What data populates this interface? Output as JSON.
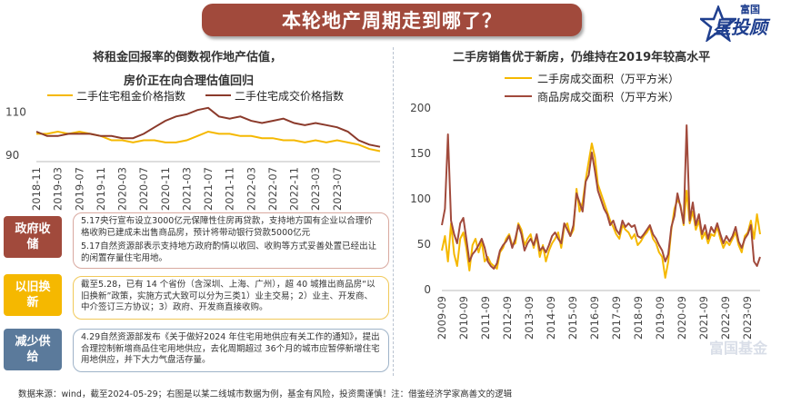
{
  "header": {
    "title": "本轮地产周期走到哪了？",
    "logo_small": "富国",
    "logo_big": "星投顾"
  },
  "left_chart": {
    "title_line1": "将租金回报率的倒数视作地产估值，",
    "title_line2": "房价正在向合理估值回归",
    "legend": [
      "二手住宅租金价格指数",
      "二手住宅成交价格指数"
    ],
    "colors": {
      "rent": "#f5b800",
      "trade": "#8b3a2b"
    }
  },
  "right_chart": {
    "title": "二手房销售优于新房，仍维持在2019年较高水平",
    "legend": [
      "二手房成交面积（万平方米）",
      "商品房成交面积（万平方米）"
    ],
    "colors": {
      "second_hand": "#f5b800",
      "new_home": "#a14a3c"
    }
  },
  "chart_data": [
    {
      "type": "line",
      "title": "",
      "ylim": [
        88,
        114
      ],
      "yticks": [
        90,
        110
      ],
      "x": [
        "2018-11",
        "2019-01",
        "2019-03",
        "2019-05",
        "2019-07",
        "2019-09",
        "2019-11",
        "2020-01",
        "2020-03",
        "2020-05",
        "2020-07",
        "2020-09",
        "2020-11",
        "2021-01",
        "2021-03",
        "2021-05",
        "2021-07",
        "2021-09",
        "2021-11",
        "2022-01",
        "2022-03",
        "2022-05",
        "2022-07",
        "2022-09",
        "2022-11",
        "2023-01",
        "2023-03",
        "2023-05",
        "2023-07",
        "2023-09",
        "2023-11",
        "2024-01",
        "2024-03"
      ],
      "xtick_labels": [
        "2018-11",
        "2019-03",
        "2019-07",
        "2019-11",
        "2020-03",
        "2020-07",
        "2020-11",
        "2021-03",
        "2021-07",
        "2021-11",
        "2022-03",
        "2022-07",
        "2022-11",
        "2023-03",
        "2023-07"
      ],
      "series": [
        {
          "name": "二手住宅租金价格指数",
          "values": [
            100,
            100,
            101,
            100,
            101,
            100,
            99,
            97,
            97,
            96,
            97,
            97,
            96,
            96,
            97,
            99,
            101,
            100,
            100,
            99,
            99,
            98,
            98,
            97,
            97,
            96,
            97,
            96,
            97,
            96,
            95,
            93,
            92
          ]
        },
        {
          "name": "二手住宅成交价格指数",
          "values": [
            101,
            99,
            99,
            100,
            100,
            100,
            99,
            99,
            98,
            98,
            100,
            103,
            106,
            108,
            109,
            111,
            112,
            108,
            107,
            108,
            106,
            105,
            106,
            107,
            105,
            104,
            105,
            104,
            103,
            101,
            97,
            95,
            94
          ]
        }
      ]
    },
    {
      "type": "line",
      "title": "",
      "ylim": [
        0,
        200
      ],
      "yticks": [
        0,
        50,
        100,
        150,
        200
      ],
      "x_start": "2009-09",
      "x_end": "2024-04",
      "xtick_labels": [
        "2009-09",
        "2010-09",
        "2011-09",
        "2012-09",
        "2013-09",
        "2014-09",
        "2015-09",
        "2016-09",
        "2017-09",
        "2018-09",
        "2019-09",
        "2020-09",
        "2021-09",
        "2022-09",
        "2023-09"
      ],
      "series": [
        {
          "name": "二手房成交面积（万平方米）",
          "values": [
            42,
            58,
            30,
            72,
            38,
            25,
            55,
            62,
            45,
            20,
            48,
            55,
            40,
            52,
            30,
            35,
            28,
            25,
            22,
            40,
            45,
            55,
            60,
            48,
            50,
            72,
            65,
            48,
            55,
            60,
            45,
            58,
            35,
            48,
            30,
            42,
            50,
            55,
            62,
            45,
            68,
            72,
            58,
            65,
            110,
            85,
            95,
            120,
            140,
            160,
            145,
            115,
            105,
            95,
            85,
            75,
            68,
            60,
            55,
            70,
            65,
            62,
            55,
            60,
            48,
            52,
            58,
            62,
            68,
            55,
            50,
            40,
            35,
            12,
            30,
            65,
            88,
            98,
            92,
            70,
            108,
            72,
            85,
            65,
            75,
            55,
            62,
            50,
            60,
            58,
            68,
            55,
            45,
            52,
            48,
            55,
            62,
            48,
            40,
            58,
            62,
            75,
            55,
            82,
            60
          ]
        },
        {
          "name": "商品房成交面积（万平方米）",
          "values": [
            70,
            88,
            170,
            75,
            60,
            50,
            72,
            78,
            55,
            30,
            38,
            42,
            48,
            55,
            45,
            30,
            25,
            22,
            28,
            42,
            48,
            52,
            58,
            45,
            55,
            70,
            60,
            42,
            50,
            55,
            48,
            60,
            42,
            46,
            40,
            48,
            58,
            62,
            55,
            50,
            72,
            65,
            58,
            70,
            105,
            95,
            85,
            118,
            125,
            150,
            130,
            108,
            98,
            88,
            82,
            70,
            75,
            65,
            60,
            75,
            68,
            72,
            68,
            70,
            58,
            56,
            60,
            65,
            70,
            60,
            55,
            48,
            42,
            30,
            38,
            68,
            80,
            105,
            90,
            72,
            180,
            75,
            95,
            70,
            82,
            60,
            70,
            55,
            68,
            62,
            72,
            60,
            50,
            58,
            52,
            58,
            68,
            52,
            45,
            55,
            60,
            70,
            30,
            25,
            35
          ]
        }
      ]
    }
  ],
  "policies": [
    {
      "tag_line1": "政府收",
      "tag_line2": "储",
      "items": [
        "5.17央行宣布设立3000亿元保障性住房再贷款，支持地方国有企业以合理价格收购已建成未出售商品房，预计将带动银行贷款5000亿元",
        "5.17自然资源部表示支持地方政府酌情以收回、收购等方式妥善处置已经出让的闲置存量住宅用地。"
      ]
    },
    {
      "tag_line1": "以旧换",
      "tag_line2": "新",
      "items": [
        "截至5.28，已有 14 个省份（含深圳、上海、广州），超 40 城推出商品房“以旧换新”政策，实施方式大致可以分为三类1）业主交易；2）业主、开发商、中介签订三方协议；3）政府、开发商直接收购。"
      ]
    },
    {
      "tag_line1": "减少供",
      "tag_line2": "给",
      "items": [
        "4.29自然资源部发布《关于做好2024 年住宅用地供应有关工作的通知》，提出合理控制新增商品住宅用地供应，去化周期超过 36个月的城市应暂停新增住宅用地供应，并下大力气盘活存量。"
      ]
    }
  ],
  "footer": {
    "text": "数据来源：wind，截至2024-05-29；右图是以某二线城市数据为例，基金有风险，投资需谨慎！注：借鉴经济学家高善文的逻辑"
  },
  "watermark": "富国基金"
}
